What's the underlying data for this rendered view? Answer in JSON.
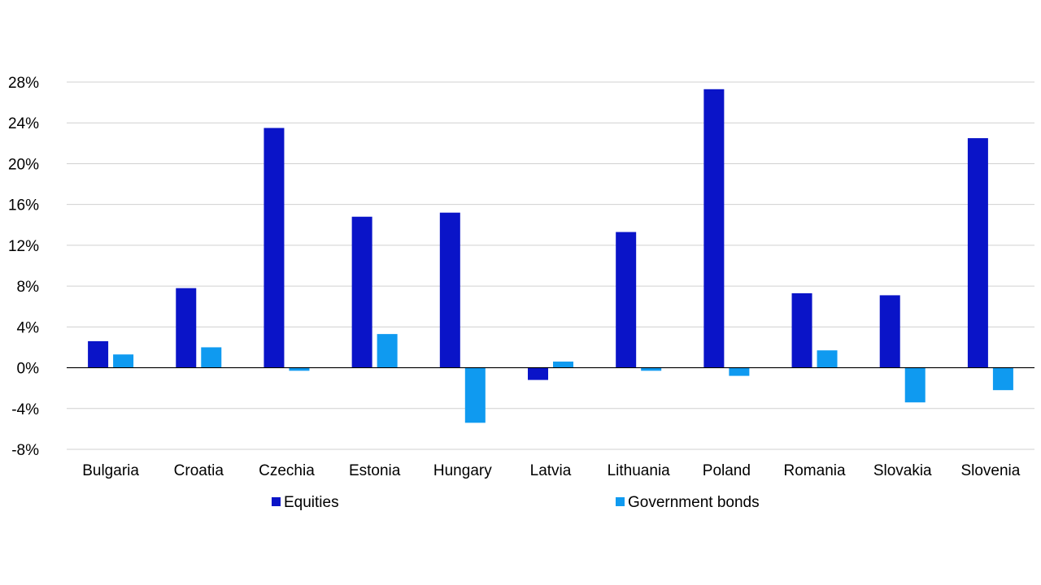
{
  "chart_data": {
    "type": "bar",
    "title": "",
    "xlabel": "",
    "ylabel": "",
    "ylim": [
      -8,
      28
    ],
    "yticks": [
      -8,
      -4,
      0,
      4,
      8,
      12,
      16,
      20,
      24,
      28
    ],
    "ytick_labels": [
      "-8%",
      "-4%",
      "0%",
      "4%",
      "8%",
      "12%",
      "16%",
      "20%",
      "24%",
      "28%"
    ],
    "grid": true,
    "legend_position": "bottom",
    "categories": [
      "Bulgaria",
      "Croatia",
      "Czechia",
      "Estonia",
      "Hungary",
      "Latvia",
      "Lithuania",
      "Poland",
      "Romania",
      "Slovakia",
      "Slovenia"
    ],
    "series": [
      {
        "name": "Equities",
        "color": "#0a14c8",
        "values": [
          2.6,
          7.8,
          23.5,
          14.8,
          15.2,
          -1.2,
          13.3,
          27.3,
          7.3,
          7.1,
          22.5
        ]
      },
      {
        "name": "Government bonds",
        "color": "#0f9af0",
        "values": [
          1.3,
          2.0,
          -0.3,
          3.3,
          -5.4,
          0.6,
          -0.3,
          -0.8,
          1.7,
          -3.4,
          -2.2
        ]
      }
    ]
  }
}
